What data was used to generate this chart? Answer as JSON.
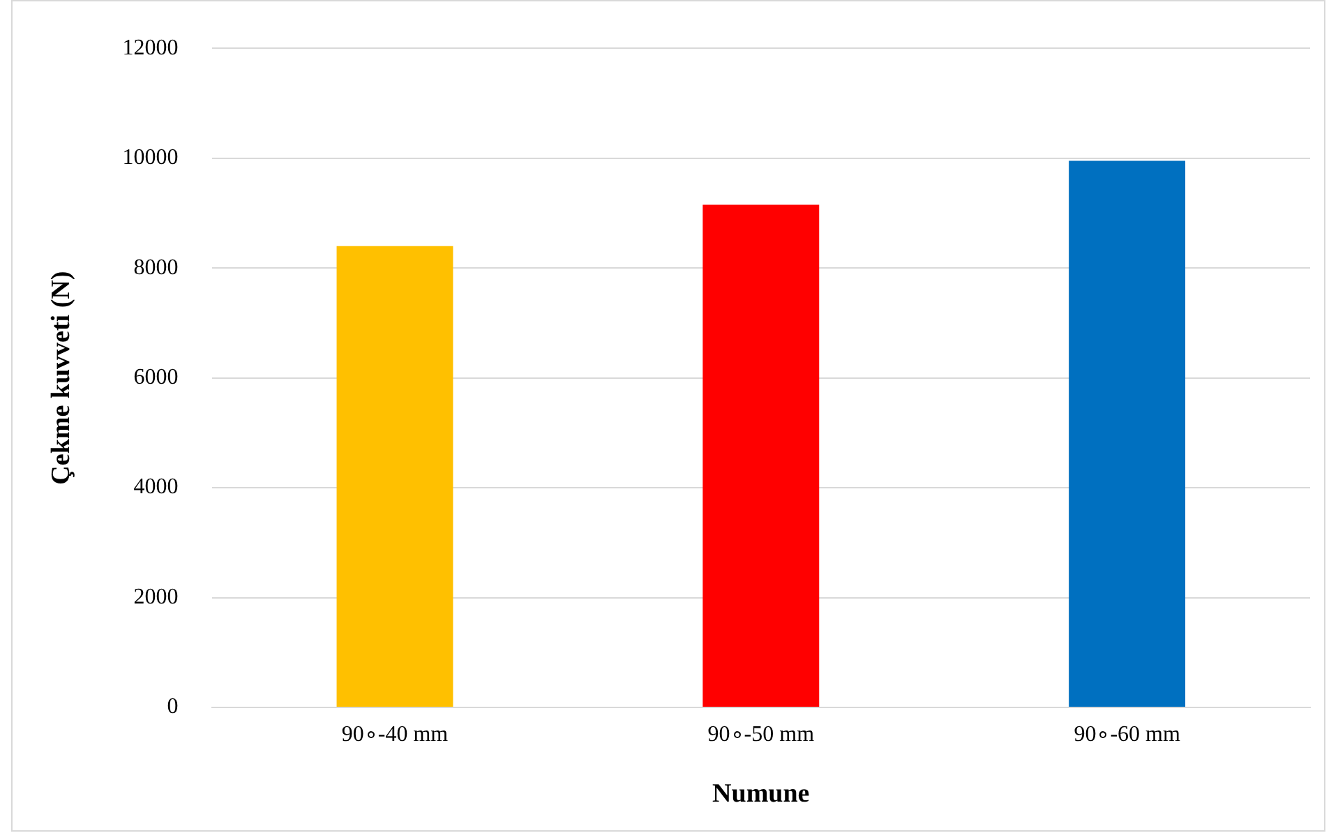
{
  "chart_data": {
    "type": "bar",
    "xlabel": "Numune",
    "ylabel": "Çekme kuvveti (N)",
    "categories": [
      "90∘-40 mm",
      "90∘-50 mm",
      "90∘-60 mm"
    ],
    "values": [
      8400,
      9150,
      9950
    ],
    "colors": [
      "#ffc000",
      "#ff0000",
      "#0070c0"
    ],
    "ylim": [
      0,
      12000
    ],
    "yticks": [
      0,
      2000,
      4000,
      6000,
      8000,
      10000,
      12000
    ],
    "grid": "y",
    "legend": false
  }
}
